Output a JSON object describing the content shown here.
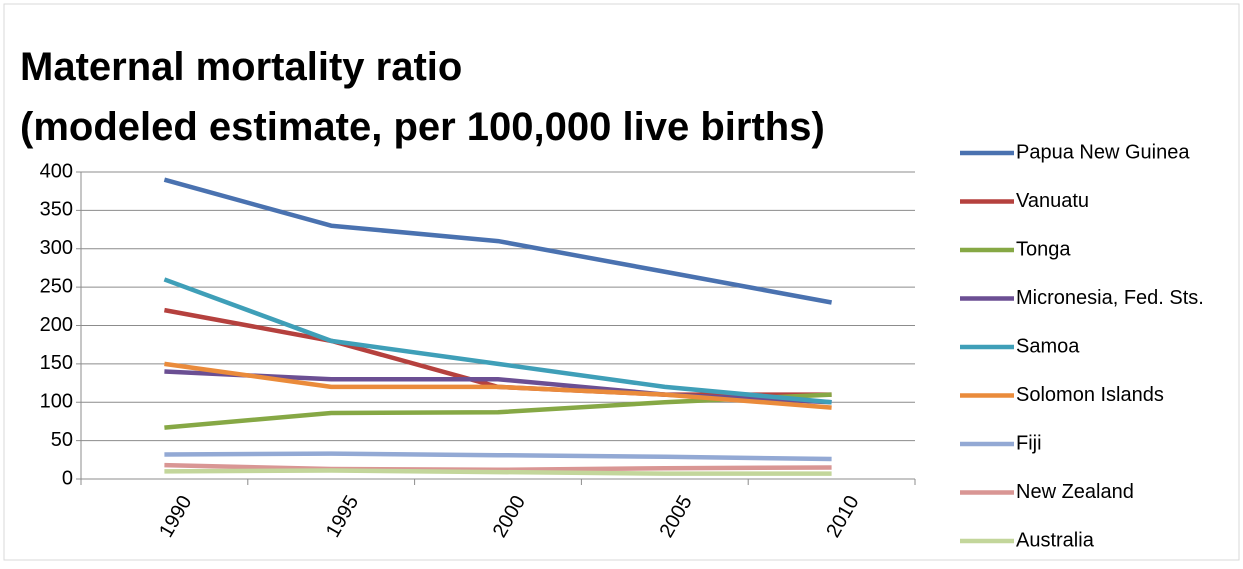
{
  "chart_data": {
    "type": "line",
    "title": "Maternal mortality ratio",
    "subtitle": "(modeled estimate, per 100,000 live births)",
    "categories": [
      "1990",
      "1995",
      "2000",
      "2005",
      "2010"
    ],
    "series": [
      {
        "name": "Papua New Guinea",
        "color": "#4a72b0",
        "values": [
          390,
          330,
          310,
          270,
          230
        ]
      },
      {
        "name": "Vanuatu",
        "color": "#b5413e",
        "values": [
          220,
          180,
          120,
          110,
          110
        ]
      },
      {
        "name": "Tonga",
        "color": "#86a845",
        "values": [
          67,
          86,
          87,
          100,
          110
        ]
      },
      {
        "name": "Micronesia, Fed. Sts.",
        "color": "#6b4f93",
        "values": [
          140,
          130,
          130,
          110,
          100
        ]
      },
      {
        "name": "Samoa",
        "color": "#3f9fb8",
        "values": [
          260,
          180,
          150,
          120,
          100
        ]
      },
      {
        "name": "Solomon Islands",
        "color": "#ea8b3b",
        "values": [
          150,
          120,
          120,
          110,
          93
        ]
      },
      {
        "name": "Fiji",
        "color": "#93a9d4",
        "values": [
          32,
          33,
          31,
          29,
          26
        ]
      },
      {
        "name": "New Zealand",
        "color": "#d99694",
        "values": [
          18,
          13,
          12,
          14,
          15
        ]
      },
      {
        "name": "Australia",
        "color": "#c3d69b",
        "values": [
          10,
          11,
          9,
          7,
          7
        ]
      }
    ],
    "ylim": [
      0,
      400
    ],
    "yticks": [
      0,
      50,
      100,
      150,
      200,
      250,
      300,
      350,
      400
    ],
    "grid": true,
    "legend": "right"
  }
}
